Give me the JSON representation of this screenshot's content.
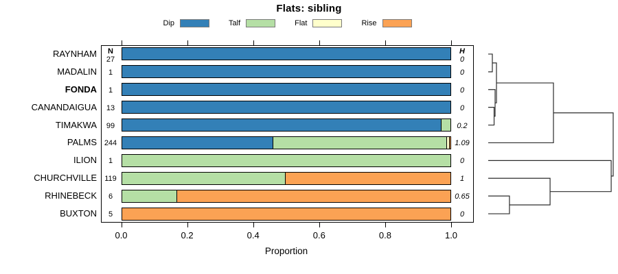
{
  "title": "Flats: sibling",
  "legend": {
    "items": [
      {
        "label": "Dip",
        "color": "#3380b7"
      },
      {
        "label": "Talf",
        "color": "#b5dfa5"
      },
      {
        "label": "Flat",
        "color": "#ffffcc"
      },
      {
        "label": "Rise",
        "color": "#fba254"
      }
    ]
  },
  "columns": {
    "n_header": "N",
    "h_header": "H"
  },
  "xlabel": "Proportion",
  "chart_data": {
    "type": "bar",
    "orientation": "horizontal",
    "stacked": true,
    "title": "Flats: sibling",
    "xlabel": "Proportion",
    "xlim": [
      0,
      1
    ],
    "x_ticks": [
      "0.0",
      "0.2",
      "0.4",
      "0.6",
      "0.8",
      "1.0"
    ],
    "legend": [
      "Dip",
      "Talf",
      "Flat",
      "Rise"
    ],
    "legend_position": "top",
    "grid": false,
    "rows": [
      {
        "label": "RAYNHAM",
        "bold": false,
        "n": "27",
        "h": "0",
        "segments": {
          "Dip": 1.0
        }
      },
      {
        "label": "MADALIN",
        "bold": false,
        "n": "1",
        "h": "0",
        "segments": {
          "Dip": 1.0
        }
      },
      {
        "label": "FONDA",
        "bold": true,
        "n": "1",
        "h": "0",
        "segments": {
          "Dip": 1.0
        }
      },
      {
        "label": "CANANDAIGUA",
        "bold": false,
        "n": "13",
        "h": "0",
        "segments": {
          "Dip": 1.0
        }
      },
      {
        "label": "TIMAKWA",
        "bold": false,
        "n": "99",
        "h": "0.2",
        "segments": {
          "Dip": 0.97,
          "Talf": 0.03
        }
      },
      {
        "label": "PALMS",
        "bold": false,
        "n": "244",
        "h": "1.09",
        "segments": {
          "Dip": 0.459,
          "Talf": 0.529,
          "Flat": 0.008,
          "Rise": 0.004
        }
      },
      {
        "label": "ILION",
        "bold": false,
        "n": "1",
        "h": "0",
        "segments": {
          "Talf": 1.0
        }
      },
      {
        "label": "CHURCHVILLE",
        "bold": false,
        "n": "119",
        "h": "1",
        "segments": {
          "Talf": 0.496,
          "Rise": 0.504
        }
      },
      {
        "label": "RHINEBECK",
        "bold": false,
        "n": "6",
        "h": "0.65",
        "segments": {
          "Talf": 0.167,
          "Rise": 0.833
        }
      },
      {
        "label": "BUXTON",
        "bold": false,
        "n": "5",
        "h": "0",
        "segments": {
          "Rise": 1.0
        }
      }
    ],
    "dendrogram": {
      "leaf_order": [
        "RAYNHAM",
        "MADALIN",
        "FONDA",
        "CANANDAIGUA",
        "TIMAKWA",
        "PALMS",
        "ILION",
        "CHURCHVILLE",
        "RHINEBECK",
        "BUXTON"
      ],
      "merges": [
        {
          "id": "m1",
          "children": [
            "RAYNHAM",
            "MADALIN"
          ],
          "height": 0.033
        },
        {
          "id": "m2",
          "children": [
            "CANANDAIGUA",
            "TIMAKWA"
          ],
          "height": 0.047
        },
        {
          "id": "m3",
          "children": [
            "FONDA",
            "m2"
          ],
          "height": 0.055
        },
        {
          "id": "m4",
          "children": [
            "m1",
            "m3"
          ],
          "height": 0.066
        },
        {
          "id": "m5",
          "children": [
            "m4",
            "PALMS"
          ],
          "height": 0.522
        },
        {
          "id": "m6",
          "children": [
            "RHINEBECK",
            "BUXTON"
          ],
          "height": 0.17
        },
        {
          "id": "m7",
          "children": [
            "CHURCHVILLE",
            "m6"
          ],
          "height": 0.495
        },
        {
          "id": "m8",
          "children": [
            "ILION",
            "m7"
          ],
          "height": 0.984
        },
        {
          "id": "m9",
          "children": [
            "m5",
            "m8"
          ],
          "height": 1.0
        }
      ]
    }
  }
}
